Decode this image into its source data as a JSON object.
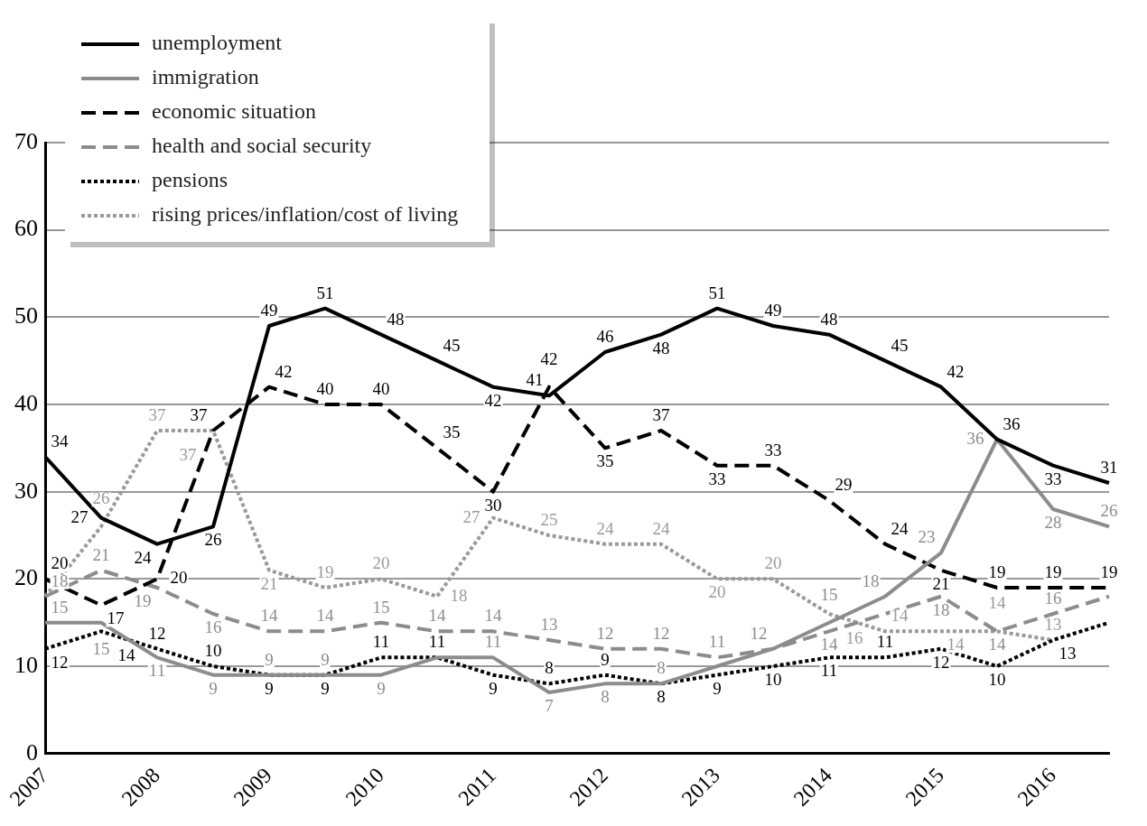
{
  "chart_data": {
    "type": "line",
    "categories": [
      "2007",
      null,
      "2008",
      null,
      "2009",
      null,
      "2010",
      null,
      "2011",
      null,
      "2012",
      null,
      "2013",
      null,
      "2014",
      null,
      "2015",
      null,
      "2016",
      null
    ],
    "series": [
      {
        "name": "unemployment",
        "color": "#000000",
        "line_style": "solid",
        "values": [
          34,
          27,
          24,
          26,
          49,
          51,
          48,
          45,
          42,
          41,
          46,
          48,
          51,
          49,
          48,
          45,
          42,
          36,
          33,
          31
        ],
        "value_labels": [
          "34",
          "27",
          "24",
          "26",
          "49",
          "51",
          "48",
          "45",
          "42",
          "41",
          "46",
          "48",
          "51",
          "49",
          "48",
          "45",
          "42",
          "36",
          "33",
          "31"
        ]
      },
      {
        "name": "immigration",
        "color": "#8c8c8c",
        "line_style": "solid",
        "values": [
          15,
          15,
          11,
          9,
          9,
          9,
          9,
          11,
          11,
          7,
          8,
          8,
          10,
          12,
          15,
          18,
          23,
          36,
          28,
          26
        ],
        "value_labels": [
          "15",
          "15",
          "11",
          "9",
          "9",
          "9",
          "9",
          null,
          "11",
          "7",
          "8",
          "8",
          null,
          null,
          "15",
          "18",
          "23",
          "36",
          "28",
          "26"
        ]
      },
      {
        "name": "economic situation",
        "color": "#000000",
        "line_style": "dashed",
        "values": [
          20,
          17,
          20,
          37,
          42,
          40,
          40,
          35,
          30,
          42,
          35,
          37,
          33,
          33,
          29,
          24,
          21,
          19,
          19,
          19
        ],
        "value_labels": [
          "20",
          "17",
          "20",
          "37",
          "42",
          "40",
          "40",
          "35",
          "30",
          "42",
          "35",
          "37",
          "33",
          "33",
          "29",
          "24",
          "21",
          "19",
          "19",
          "19"
        ]
      },
      {
        "name": "health and social security",
        "color": "#8c8c8c",
        "line_style": "dashed",
        "values": [
          18,
          21,
          19,
          16,
          14,
          14,
          15,
          14,
          14,
          13,
          12,
          12,
          11,
          12,
          14,
          16,
          18,
          14,
          16,
          18
        ],
        "value_labels": [
          "18",
          "21",
          "19",
          "16",
          "14",
          "14",
          "15",
          "14",
          "14",
          "13",
          "12",
          "12",
          "11",
          "12",
          "14",
          null,
          "18",
          "14",
          "16",
          null
        ]
      },
      {
        "name": "pensions",
        "color": "#000000",
        "line_style": "dotted",
        "values": [
          12,
          14,
          12,
          10,
          9,
          9,
          11,
          11,
          9,
          8,
          9,
          8,
          9,
          10,
          11,
          11,
          12,
          10,
          13,
          15
        ],
        "value_labels": [
          "12",
          "14",
          "12",
          "10",
          "9",
          "9",
          "11",
          "11",
          "9",
          "8",
          "9",
          "8",
          "9",
          "10",
          "11",
          "11",
          "12",
          "10",
          "13",
          null
        ]
      },
      {
        "name": "rising prices/inflation/cost of living",
        "color": "#9a9a9a",
        "line_style": "dotted",
        "values": [
          18,
          26,
          37,
          37,
          21,
          19,
          20,
          18,
          27,
          25,
          24,
          24,
          20,
          20,
          16,
          14,
          14,
          14,
          13,
          null
        ],
        "value_labels": [
          null,
          "26",
          "37",
          "37",
          "21",
          "19",
          "20",
          "18",
          "27",
          "25",
          "24",
          "24",
          "20",
          "20",
          "16",
          "14",
          "14",
          "14",
          "13",
          null
        ]
      }
    ],
    "ylim": [
      0,
      70
    ],
    "yticks": [
      0,
      10,
      20,
      30,
      40,
      50,
      60,
      70
    ],
    "grid": "y",
    "legend": "top left",
    "marker": "none"
  }
}
